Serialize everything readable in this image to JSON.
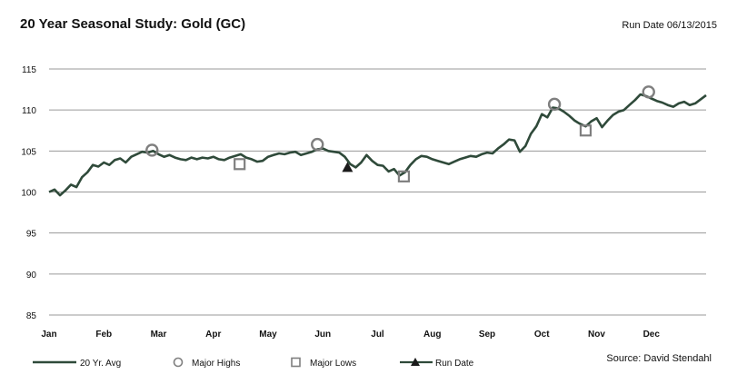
{
  "header": {
    "title": "20 Year Seasonal Study: Gold (GC)",
    "run_date": "Run Date 06/13/2015"
  },
  "footer": {
    "source": "Source:  David Stendahl"
  },
  "colors": {
    "line": "#2f4a3a",
    "marker": "#7f7f7f",
    "run_marker": "#1a1a1a",
    "grid": "#9a9a9a"
  },
  "chart_data": {
    "type": "line",
    "title": "20 Year Seasonal Study: Gold (GC)",
    "xlabel": "",
    "ylabel": "",
    "ylim": [
      85,
      115
    ],
    "yticks": [
      85,
      90,
      95,
      100,
      105,
      110,
      115
    ],
    "xlim": [
      0,
      12
    ],
    "months": [
      "Jan",
      "Feb",
      "Mar",
      "Apr",
      "May",
      "Jun",
      "Jul",
      "Aug",
      "Sep",
      "Oct",
      "Nov",
      "Dec"
    ],
    "grid": "horizontal",
    "legend": {
      "placement": "bottom",
      "entries": [
        "20 Yr. Avg",
        "Major Highs",
        "Major Lows",
        "Run Date"
      ]
    },
    "series": [
      {
        "name": "20 Yr. Avg",
        "x": [
          0.0,
          0.1,
          0.2,
          0.3,
          0.4,
          0.5,
          0.6,
          0.7,
          0.8,
          0.9,
          1.0,
          1.1,
          1.2,
          1.3,
          1.4,
          1.5,
          1.6,
          1.7,
          1.8,
          1.9,
          2.0,
          2.1,
          2.2,
          2.3,
          2.4,
          2.5,
          2.6,
          2.7,
          2.8,
          2.9,
          3.0,
          3.1,
          3.2,
          3.3,
          3.4,
          3.5,
          3.6,
          3.7,
          3.8,
          3.9,
          4.0,
          4.1,
          4.2,
          4.3,
          4.4,
          4.5,
          4.6,
          4.7,
          4.8,
          4.9,
          5.0,
          5.1,
          5.2,
          5.3,
          5.4,
          5.5,
          5.6,
          5.7,
          5.8,
          5.9,
          6.0,
          6.1,
          6.2,
          6.3,
          6.4,
          6.5,
          6.6,
          6.7,
          6.8,
          6.9,
          7.0,
          7.1,
          7.2,
          7.3,
          7.4,
          7.5,
          7.6,
          7.7,
          7.8,
          7.9,
          8.0,
          8.1,
          8.2,
          8.3,
          8.4,
          8.5,
          8.6,
          8.7,
          8.8,
          8.9,
          9.0,
          9.1,
          9.2,
          9.3,
          9.4,
          9.5,
          9.6,
          9.7,
          9.8,
          9.9,
          10.0,
          10.1,
          10.2,
          10.3,
          10.4,
          10.5,
          10.6,
          10.7,
          10.8,
          10.9,
          11.0,
          11.1,
          11.2,
          11.3,
          11.4,
          11.5,
          11.6,
          11.7,
          11.8,
          11.9,
          12.0
        ],
        "values": [
          100.0,
          100.3,
          99.6,
          100.2,
          100.9,
          100.6,
          101.8,
          102.4,
          103.3,
          103.1,
          103.6,
          103.3,
          103.9,
          104.1,
          103.6,
          104.3,
          104.6,
          104.9,
          104.8,
          105.0,
          104.6,
          104.3,
          104.5,
          104.2,
          104.0,
          103.9,
          104.2,
          104.0,
          104.2,
          104.1,
          104.3,
          104.0,
          103.9,
          104.2,
          104.4,
          104.6,
          104.2,
          104.0,
          103.7,
          103.8,
          104.3,
          104.5,
          104.7,
          104.6,
          104.8,
          104.9,
          104.5,
          104.7,
          104.9,
          105.2,
          105.3,
          105.0,
          104.9,
          104.8,
          104.3,
          103.4,
          103.0,
          103.6,
          104.5,
          103.8,
          103.3,
          103.2,
          102.5,
          102.8,
          102.0,
          102.4,
          103.3,
          104.0,
          104.4,
          104.3,
          104.0,
          103.8,
          103.6,
          103.4,
          103.7,
          104.0,
          104.2,
          104.4,
          104.3,
          104.6,
          104.8,
          104.7,
          105.3,
          105.8,
          106.4,
          106.3,
          104.9,
          105.6,
          107.1,
          108.0,
          109.5,
          109.1,
          110.3,
          110.2,
          109.8,
          109.3,
          108.7,
          108.3,
          108.0,
          108.6,
          109.0,
          107.9,
          108.7,
          109.4,
          109.8,
          110.0,
          110.6,
          111.2,
          111.9,
          111.7,
          111.4,
          111.1,
          110.9,
          110.6,
          110.4,
          110.8,
          111.0,
          110.6,
          110.8,
          111.3,
          111.8
        ],
        "color": "#2f4a3a"
      }
    ],
    "major_highs": [
      {
        "x": 1.88,
        "y": 105.1
      },
      {
        "x": 4.9,
        "y": 105.8
      },
      {
        "x": 9.23,
        "y": 110.7
      },
      {
        "x": 10.95,
        "y": 112.2
      }
    ],
    "major_lows": [
      {
        "x": 3.48,
        "y": 103.4
      },
      {
        "x": 6.48,
        "y": 101.9
      },
      {
        "x": 9.8,
        "y": 107.5
      }
    ],
    "run_date_point": {
      "x": 5.45,
      "y": 103.0
    }
  }
}
